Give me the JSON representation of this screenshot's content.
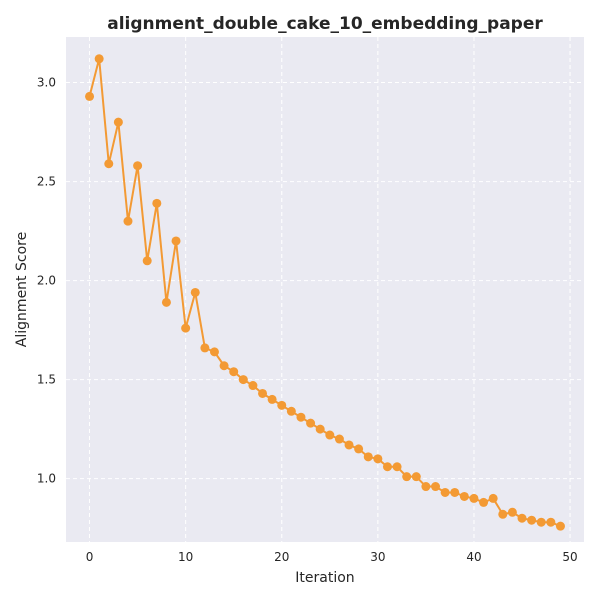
{
  "chart_data": {
    "type": "line",
    "title": "alignment_double_cake_10_embedding_paper",
    "xlabel": "Iteration",
    "ylabel": "Alignment Score",
    "xlim": [
      -2.45,
      51.45
    ],
    "ylim": [
      0.68,
      3.23
    ],
    "xticks": [
      0,
      10,
      20,
      30,
      40,
      50
    ],
    "yticks": [
      1.0,
      1.5,
      2.0,
      2.5,
      3.0
    ],
    "xtick_labels": [
      "0",
      "10",
      "20",
      "30",
      "40",
      "50"
    ],
    "ytick_labels": [
      "1.0",
      "1.5",
      "2.0",
      "2.5",
      "3.0"
    ],
    "grid": true,
    "colors": {
      "series": "#f39a34",
      "plot_bg": "#eaeaf2",
      "grid": "#ffffff"
    },
    "series": [
      {
        "x": [
          0,
          1,
          2,
          3,
          4,
          5,
          6,
          7,
          8,
          9,
          10,
          11,
          12,
          13,
          14,
          15,
          16,
          17,
          18,
          19,
          20,
          21,
          22,
          23,
          24,
          25,
          26,
          27,
          28,
          29,
          30,
          31,
          32,
          33,
          34,
          35,
          36,
          37,
          38,
          39,
          40,
          41,
          42,
          43,
          44,
          45,
          46,
          47,
          48,
          49
        ],
        "values": [
          2.93,
          3.12,
          2.59,
          2.8,
          2.3,
          2.58,
          2.1,
          2.39,
          1.89,
          2.2,
          1.76,
          1.94,
          1.66,
          1.64,
          1.57,
          1.54,
          1.5,
          1.47,
          1.43,
          1.4,
          1.37,
          1.34,
          1.31,
          1.28,
          1.25,
          1.22,
          1.2,
          1.17,
          1.15,
          1.11,
          1.1,
          1.06,
          1.06,
          1.01,
          1.01,
          0.96,
          0.96,
          0.93,
          0.93,
          0.91,
          0.9,
          0.88,
          0.9,
          0.82,
          0.83,
          0.8,
          0.79,
          0.78,
          0.78,
          0.76
        ]
      }
    ]
  }
}
